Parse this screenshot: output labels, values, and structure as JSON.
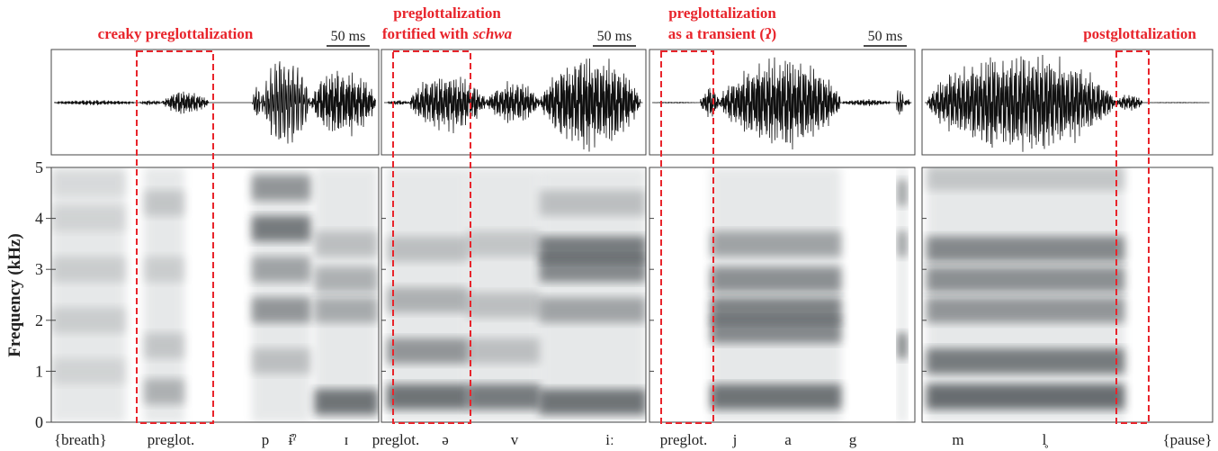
{
  "y_axis": {
    "label": "Frequency (kHz)",
    "lim": [
      0,
      5
    ],
    "ticks": [
      0,
      1,
      2,
      3,
      4,
      5
    ]
  },
  "panels": [
    {
      "title": [
        {
          "text": "creaky preglottalization"
        }
      ],
      "scale": "50 ms",
      "segments": [
        "{breath}",
        "preglot.",
        "p",
        "ɨ̊ˀ",
        "ɪ"
      ]
    },
    {
      "title": [
        {
          "text": "preglottalization"
        },
        {
          "text": "fortified with",
          "emphasis": "schwa"
        }
      ],
      "scale": "50 ms",
      "segments": [
        "preglot.",
        "ə",
        "v",
        "iː"
      ]
    },
    {
      "title": [
        {
          "text": "preglottalization"
        },
        {
          "text": "as a transient (ʔ)"
        }
      ],
      "scale": "50 ms",
      "segments": [
        "preglot.",
        "j",
        "a",
        "g"
      ]
    },
    {
      "title": [
        {
          "text": "postglottalization"
        }
      ],
      "segments": [
        "m",
        "l̥",
        "{pause}"
      ]
    }
  ]
}
